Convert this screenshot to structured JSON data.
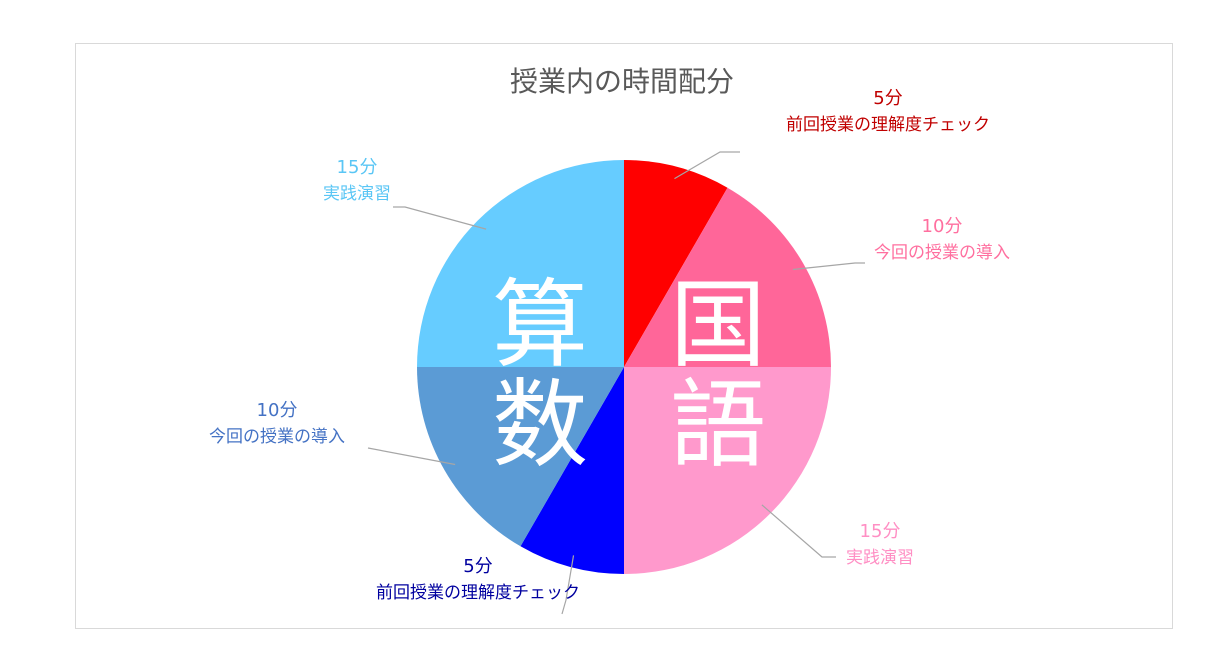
{
  "chart_data": {
    "type": "pie",
    "title": "授業内の時間配分",
    "unit": "分",
    "slices": [
      {
        "value": 5,
        "value_label": "5分",
        "name": "前回授業の理解度チェック",
        "color": "#ff0000",
        "label_color": "#c00000"
      },
      {
        "value": 10,
        "value_label": "10分",
        "name": "今回の授業の導入",
        "color": "#ff6699",
        "label_color": "#ff6f9f"
      },
      {
        "value": 15,
        "value_label": "15分",
        "name": "実践演習",
        "color": "#ff99cc",
        "label_color": "#ff8fc4"
      },
      {
        "value": 5,
        "value_label": "5分",
        "name": "前回授業の理解度チェック",
        "color": "#0000ff",
        "label_color": "#00009f"
      },
      {
        "value": 10,
        "value_label": "10分",
        "name": "今回の授業の導入",
        "color": "#5b9bd5",
        "label_color": "#4472c4"
      },
      {
        "value": 15,
        "value_label": "15分",
        "name": "実践演習",
        "color": "#66ccff",
        "label_color": "#5ac6f5"
      }
    ],
    "group_labels": [
      {
        "text": "国語",
        "chars": [
          "国",
          "語"
        ]
      },
      {
        "text": "算数",
        "chars": [
          "算",
          "数"
        ]
      }
    ]
  }
}
